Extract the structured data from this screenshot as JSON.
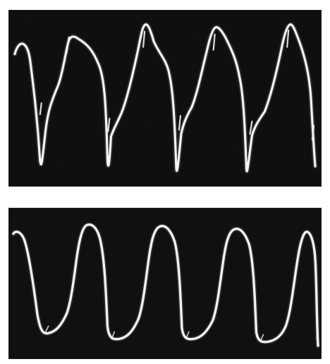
{
  "figure": {
    "panels": [
      {
        "id": "upper",
        "description_visible": false,
        "trace_color": "#f4f4f4",
        "background_color": "#0f0f0f",
        "cycles_visible": 4,
        "waveform_style": "noisy"
      },
      {
        "id": "lower",
        "description_visible": false,
        "trace_color": "#f2f2f2",
        "background_color": "#101010",
        "cycles_visible": 4,
        "waveform_style": "smooth"
      }
    ]
  }
}
